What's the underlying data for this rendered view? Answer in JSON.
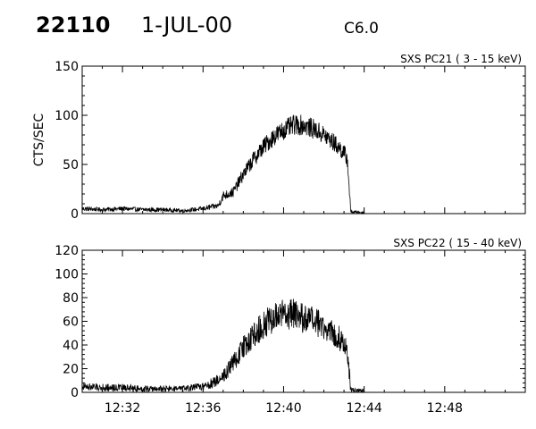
{
  "header": {
    "event_id": "22110",
    "date": "1-JUL-00",
    "goes_class": "C6.0"
  },
  "chart_data": [
    {
      "type": "line",
      "title": "SXS PC21  (  3 - 15 keV)",
      "ylabel": "CTS/SEC",
      "xlabel": "",
      "x_unit": "time (UT)",
      "xlim": [
        "12:30",
        "12:52"
      ],
      "ylim": [
        0,
        150
      ],
      "yticks": [
        0,
        50,
        100,
        150
      ],
      "grid": false,
      "series": [
        {
          "points": [
            [
              "12:30",
              5
            ],
            [
              "12:31",
              4
            ],
            [
              "12:32",
              5
            ],
            [
              "12:33",
              4
            ],
            [
              "12:34",
              4
            ],
            [
              "12:35",
              3
            ],
            [
              "12:36",
              5
            ],
            [
              "12:36:45",
              8
            ],
            [
              "12:37",
              18
            ],
            [
              "12:37:30",
              22
            ],
            [
              "12:38",
              40
            ],
            [
              "12:38:30",
              55
            ],
            [
              "12:39",
              68
            ],
            [
              "12:39:30",
              78
            ],
            [
              "12:40",
              85
            ],
            [
              "12:40:30",
              90
            ],
            [
              "12:41",
              90
            ],
            [
              "12:41:30",
              86
            ],
            [
              "12:42",
              80
            ],
            [
              "12:42:30",
              72
            ],
            [
              "12:43",
              62
            ],
            [
              "12:43:10",
              55
            ],
            [
              "12:43:20",
              2
            ],
            [
              "12:44",
              1
            ]
          ]
        }
      ]
    },
    {
      "type": "line",
      "title": "SXS PC22  ( 15 - 40 keV)",
      "ylabel": "",
      "xlabel": "",
      "x_unit": "time (UT)",
      "xlim": [
        "12:30",
        "12:52"
      ],
      "ylim": [
        0,
        120
      ],
      "yticks": [
        0,
        20,
        40,
        60,
        80,
        100,
        120
      ],
      "xticks": [
        "12:32",
        "12:36",
        "12:40",
        "12:44",
        "12:48"
      ],
      "grid": false,
      "series": [
        {
          "points": [
            [
              "12:30",
              5
            ],
            [
              "12:31",
              4
            ],
            [
              "12:32",
              4
            ],
            [
              "12:33",
              3
            ],
            [
              "12:34",
              3
            ],
            [
              "12:35",
              3
            ],
            [
              "12:36",
              5
            ],
            [
              "12:36:30",
              8
            ],
            [
              "12:37",
              14
            ],
            [
              "12:37:30",
              25
            ],
            [
              "12:38",
              38
            ],
            [
              "12:38:30",
              48
            ],
            [
              "12:39",
              57
            ],
            [
              "12:39:30",
              63
            ],
            [
              "12:40",
              66
            ],
            [
              "12:40:30",
              66
            ],
            [
              "12:41",
              62
            ],
            [
              "12:41:30",
              60
            ],
            [
              "12:42",
              55
            ],
            [
              "12:42:30",
              50
            ],
            [
              "12:43",
              42
            ],
            [
              "12:43:10",
              35
            ],
            [
              "12:43:20",
              2
            ],
            [
              "12:44",
              1
            ]
          ]
        }
      ]
    }
  ]
}
